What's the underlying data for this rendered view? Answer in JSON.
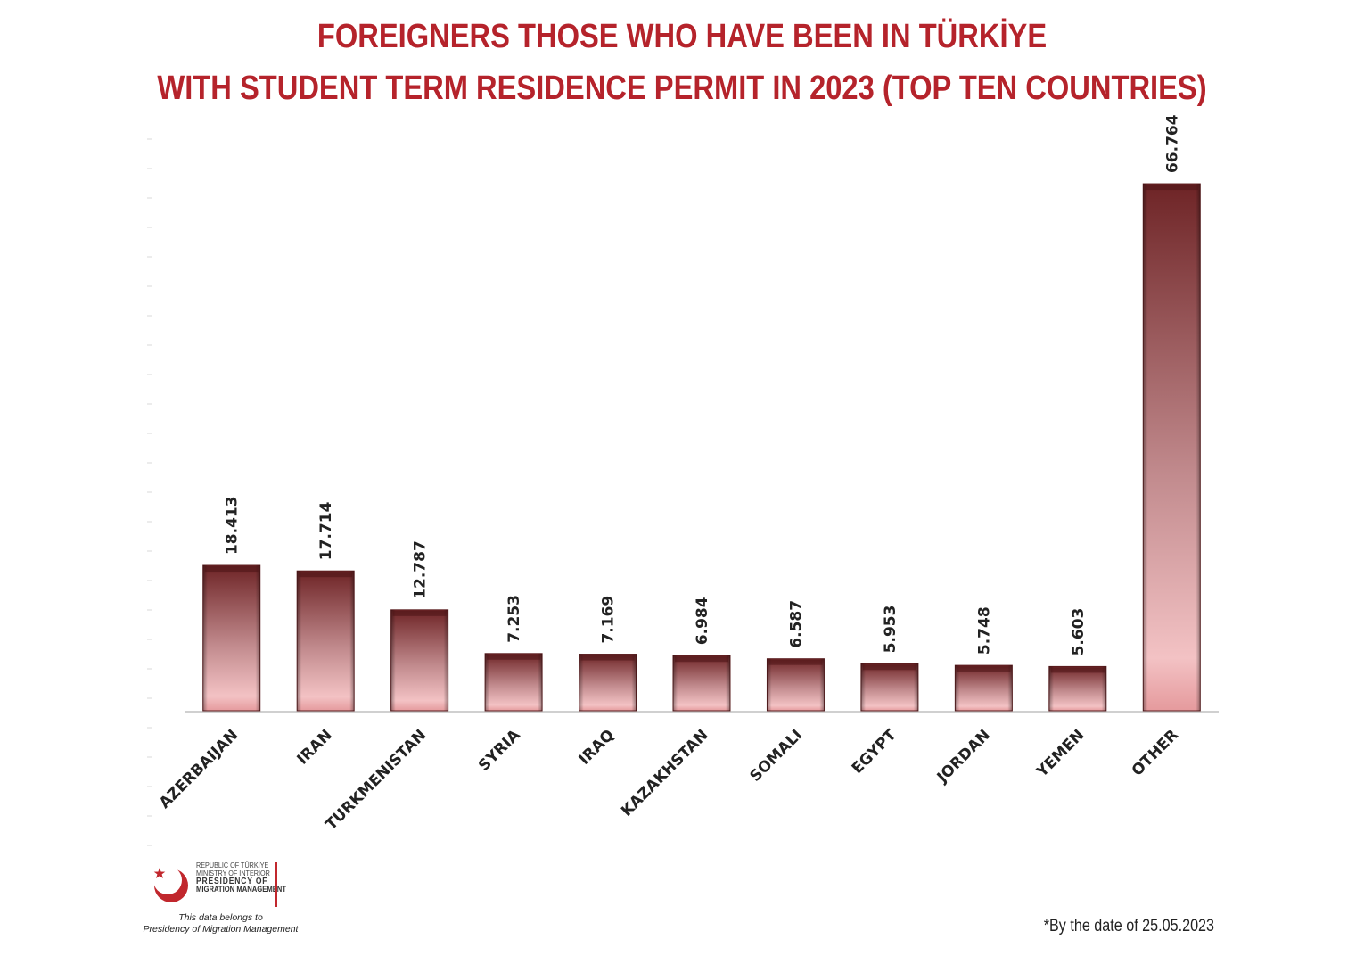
{
  "header": {
    "title_line_1": "FOREIGNERS THOSE WHO HAVE BEEN IN TÜRKİYE",
    "title_line_2": "WITH STUDENT TERM RESIDENCE PERMIT IN 2023 (TOP TEN COUNTRIES)"
  },
  "chart_data": {
    "type": "bar",
    "title": "FOREIGNERS THOSE WHO HAVE BEEN IN TÜRKİYE WITH STUDENT TERM RESIDENCE PERMIT IN 2023 (TOP TEN COUNTRIES)",
    "categories": [
      "AZERBAIJAN",
      "IRAN",
      "TURKMENISTAN",
      "SYRIA",
      "IRAQ",
      "KAZAKHSTAN",
      "SOMALI",
      "EGYPT",
      "JORDAN",
      "YEMEN",
      "OTHER"
    ],
    "values": [
      18413,
      17714,
      12787,
      7253,
      7169,
      6984,
      6587,
      5953,
      5748,
      5603,
      66764
    ],
    "value_labels": [
      "18.413",
      "17.714",
      "12.787",
      "7.253",
      "7.169",
      "6.984",
      "6.587",
      "5.953",
      "5.748",
      "5.603",
      "66.764"
    ],
    "xlabel": "",
    "ylabel": "",
    "ylim": [
      0,
      74000
    ],
    "grid": false,
    "legend": "none",
    "bar_color_top": "#6e2426",
    "bar_color_bottom": "#f3bcbf"
  },
  "footer": {
    "date_note": "*By the date of  25.05.2023",
    "logo": {
      "line_1": "REPUBLIC OF TÜRKİYE",
      "line_2": "MINISTRY OF INTERIOR",
      "line_3": "PRESIDENCY OF",
      "line_4": "MIGRATION MANAGEMENT"
    },
    "ownership_line_1": "This data belongs to",
    "ownership_line_2": "Presidency of Migration Management"
  },
  "colors": {
    "title": "#b5232b",
    "accent": "#c1272d"
  }
}
